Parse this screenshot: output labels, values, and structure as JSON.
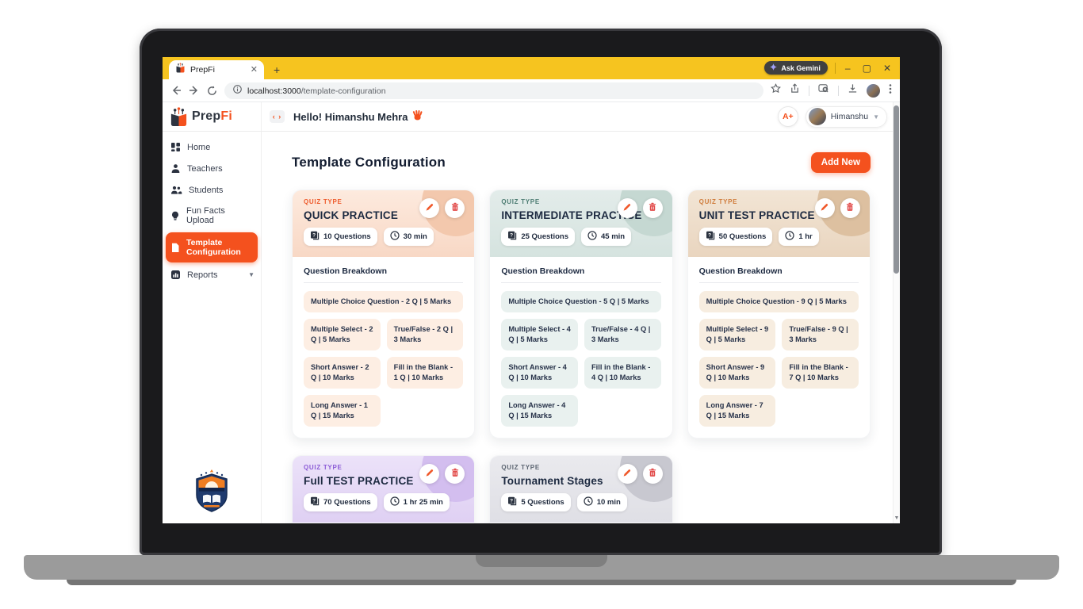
{
  "browser": {
    "tab_title": "PrepFi",
    "new_tab_label": "+",
    "ask_gemini_label": "Ask Gemini",
    "window_controls": {
      "minimize": "–",
      "maximize": "▢",
      "close": "✕"
    },
    "url": {
      "host": "localhost:3000",
      "path": "/template-configuration"
    }
  },
  "app_header": {
    "logo_prep": "Prep",
    "logo_fi": "Fi",
    "greeting": "Hello! Himanshu Mehra",
    "grade_badge": "A+",
    "user_name": "Himanshu"
  },
  "sidebar": {
    "items": [
      {
        "label": "Home",
        "icon": "home-icon",
        "active": false,
        "expandable": false
      },
      {
        "label": "Teachers",
        "icon": "teacher-icon",
        "active": false,
        "expandable": false
      },
      {
        "label": "Students",
        "icon": "students-icon",
        "active": false,
        "expandable": false
      },
      {
        "label": "Fun Facts Upload",
        "icon": "lightbulb-icon",
        "active": false,
        "expandable": false
      },
      {
        "label": "Template Configuration",
        "icon": "template-icon",
        "active": true,
        "expandable": false
      },
      {
        "label": "Reports",
        "icon": "reports-icon",
        "active": false,
        "expandable": true
      }
    ]
  },
  "main": {
    "title": "Template Configuration",
    "add_new_label": "Add New",
    "quiz_type_label": "QUIZ TYPE",
    "breakdown_label": "Question Breakdown",
    "cards": [
      {
        "theme": "peach",
        "title": "QUICK PRACTICE",
        "questions": "10 Questions",
        "duration": "30 min",
        "chips": [
          "Multiple Choice Question - 2 Q | 5 Marks",
          "Multiple Select - 2 Q | 5 Marks",
          "True/False - 2 Q | 3 Marks",
          "Short Answer - 2 Q | 10 Marks",
          "Fill in the Blank - 1 Q | 10 Marks",
          "Long Answer - 1 Q | 15 Marks"
        ]
      },
      {
        "theme": "teal",
        "title": "INTERMEDIATE PRACTICE",
        "questions": "25 Questions",
        "duration": "45 min",
        "chips": [
          "Multiple Choice Question - 5 Q | 5 Marks",
          "Multiple Select - 4 Q | 5 Marks",
          "True/False - 4 Q | 3 Marks",
          "Short Answer - 4 Q | 10 Marks",
          "Fill in the Blank - 4 Q | 10 Marks",
          "Long Answer - 4 Q | 15 Marks"
        ]
      },
      {
        "theme": "tan",
        "title": "UNIT TEST PRACTICE",
        "questions": "50 Questions",
        "duration": "1 hr",
        "chips": [
          "Multiple Choice Question - 9 Q | 5 Marks",
          "Multiple Select - 9 Q | 5 Marks",
          "True/False - 9 Q | 3 Marks",
          "Short Answer - 9 Q | 10 Marks",
          "Fill in the Blank - 7 Q | 10 Marks",
          "Long Answer - 7 Q | 15 Marks"
        ]
      },
      {
        "theme": "purple",
        "title": "Full TEST PRACTICE",
        "questions": "70 Questions",
        "duration": "1 hr 25 min",
        "chips": [
          ""
        ]
      },
      {
        "theme": "gray",
        "title": "Tournament Stages",
        "questions": "5 Questions",
        "duration": "10 min",
        "chips": [
          ""
        ]
      }
    ]
  },
  "themes": {
    "peach": {
      "label": "#ee5a2b",
      "header_from": "#fdeade",
      "header_to": "#f8d8c5",
      "circle": "#f3c8ad",
      "chip_bg": "#fdeee3"
    },
    "teal": {
      "label": "#4c7c72",
      "header_from": "#e3ecea",
      "header_to": "#d5e3df",
      "circle": "#c5d8d2",
      "chip_bg": "#e9f1ef"
    },
    "tan": {
      "label": "#cf7b3a",
      "header_from": "#f2e5d5",
      "header_to": "#e9d5bf",
      "circle": "#ddc0a0",
      "chip_bg": "#f7ede0"
    },
    "purple": {
      "label": "#8b5bd6",
      "header_from": "#ece2f9",
      "header_to": "#dfd0f3",
      "circle": "#d3beef",
      "chip_bg": "#f1eafa"
    },
    "gray": {
      "label": "#5b6470",
      "header_from": "#eaeaee",
      "header_to": "#dfdfe5",
      "circle": "#c8c8d0",
      "chip_bg": "#ededf1"
    }
  },
  "accent_color": "#f4511e"
}
